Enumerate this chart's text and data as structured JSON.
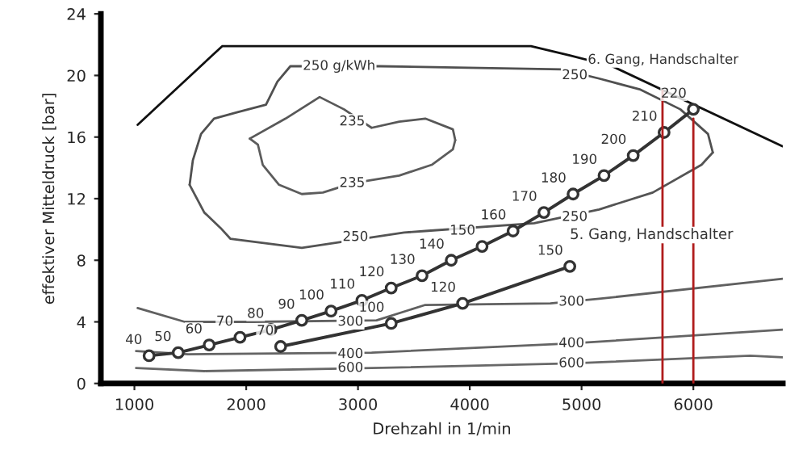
{
  "chart_data": {
    "type": "line",
    "xlabel": "Drehzahl in 1/min",
    "ylabel": "effektiver Mitteldruck [bar]",
    "xlim": [
      700,
      6800
    ],
    "xticks": [
      1000,
      2000,
      3000,
      4000,
      5000,
      6000
    ],
    "ylim": [
      0,
      24
    ],
    "yticks": [
      0,
      4,
      8,
      12,
      16,
      20,
      24
    ],
    "grid": false,
    "legend": false,
    "series": [
      {
        "color": "#111111",
        "marker": "none",
        "x": [
          1029,
          1785,
          4547,
          4895,
          5273,
          6799
        ],
        "values": [
          16.8,
          21.9,
          21.9,
          21.3,
          20.6,
          15.4
        ]
      },
      {
        "color": "#505050",
        "marker": "none",
        "x": [
          1494,
          1523,
          1596,
          1712,
          1916,
          2177,
          2279,
          2395,
          3195,
          4823,
          5157,
          5520,
          5884,
          6131,
          6174
        ],
        "values": [
          12.9,
          14.5,
          16.2,
          17.2,
          17.6,
          18.1,
          19.6,
          20.6,
          20.6,
          20.4,
          19.8,
          19.1,
          17.8,
          16.2,
          15.0
        ]
      },
      {
        "color": "#545454",
        "marker": "none",
        "x": [
          1494,
          1625,
          1770,
          1858,
          2497,
          3413,
          3602,
          4576,
          5157,
          5637,
          6073,
          6174
        ],
        "values": [
          12.9,
          11.1,
          10.1,
          9.4,
          8.8,
          9.8,
          9.9,
          10.4,
          11.3,
          12.4,
          14.2,
          15.0
        ]
      },
      {
        "color": "#585858",
        "marker": "none",
        "x": [
          2032,
          2352,
          2657,
          2875,
          3122,
          3369,
          3602,
          3849,
          3870
        ],
        "values": [
          15.9,
          17.2,
          18.6,
          17.8,
          16.6,
          17.0,
          17.2,
          16.5,
          15.8
        ]
      },
      {
        "color": "#5c5c5c",
        "marker": "none",
        "x": [
          2032,
          2105,
          2148,
          2294,
          2497,
          2686,
          2948,
          3369,
          3660,
          3849,
          3870
        ],
        "values": [
          15.9,
          15.5,
          14.2,
          12.9,
          12.3,
          12.4,
          13.0,
          13.5,
          14.2,
          15.2,
          15.8
        ]
      },
      {
        "color": "#606060",
        "marker": "none",
        "x": [
          1029,
          1451,
          2061,
          3166,
          3602,
          4721,
          5157,
          6799
        ],
        "values": [
          4.9,
          4.0,
          4.0,
          4.1,
          5.1,
          5.2,
          5.5,
          6.8
        ]
      },
      {
        "color": "#646464",
        "marker": "none",
        "x": [
          1015,
          1480,
          3122,
          4910,
          6799
        ],
        "values": [
          2.1,
          1.9,
          2.0,
          2.6,
          3.5
        ]
      },
      {
        "color": "#686868",
        "marker": "none",
        "x": [
          1015,
          1625,
          3122,
          4910,
          6509,
          6799
        ],
        "values": [
          1.0,
          0.8,
          1.0,
          1.3,
          1.8,
          1.7
        ]
      },
      {
        "color": "#333333",
        "marker": "circle",
        "x": [
          1131,
          1392,
          1669,
          1945,
          2221,
          2497,
          2759,
          3035,
          3297,
          3573,
          3834,
          4110,
          4387,
          4663,
          4924,
          5201,
          5462,
          5738,
          6000
        ],
        "values": [
          1.8,
          2.0,
          2.5,
          3.0,
          3.5,
          4.1,
          4.7,
          5.4,
          6.2,
          7.0,
          8.0,
          8.9,
          9.9,
          11.1,
          12.3,
          13.5,
          14.8,
          16.3,
          17.8
        ]
      },
      {
        "name": "5. Gang, Handschalter",
        "color": "#333333",
        "marker": "circle",
        "x": [
          2308,
          3297,
          3936,
          4895
        ],
        "values": [
          2.4,
          3.9,
          5.2,
          7.6
        ]
      },
      {
        "color": "#b01c1c",
        "marker": "none",
        "x": [
          5724,
          5724
        ],
        "values": [
          0,
          19.0
        ]
      },
      {
        "color": "#b01c1c",
        "marker": "none",
        "x": [
          6000,
          6000
        ],
        "values": [
          0,
          17.2
        ]
      }
    ],
    "annotations": [
      {
        "text": "250 g/kWh",
        "x": 2831,
        "y": 20.6
      },
      {
        "text": "6. Gang, Handschalter",
        "x": 5055,
        "y": 21.0
      },
      {
        "text": "250",
        "x": 4939,
        "y": 20.0
      },
      {
        "text": "250",
        "x": 4939,
        "y": 10.8
      },
      {
        "text": "250",
        "x": 2977,
        "y": 9.5
      },
      {
        "text": "235",
        "x": 2948,
        "y": 17.0
      },
      {
        "text": "235",
        "x": 2948,
        "y": 13.0
      },
      {
        "text": "300",
        "x": 2933,
        "y": 4.0
      },
      {
        "text": "300",
        "x": 4910,
        "y": 5.3
      },
      {
        "text": "400",
        "x": 2933,
        "y": 1.9
      },
      {
        "text": "400",
        "x": 4910,
        "y": 2.6
      },
      {
        "text": "600",
        "x": 2933,
        "y": 1.0
      },
      {
        "text": "600",
        "x": 4910,
        "y": 1.3
      },
      {
        "text": "40",
        "x": 1131,
        "y": 1.8
      },
      {
        "text": "50",
        "x": 1392,
        "y": 2.0
      },
      {
        "text": "60",
        "x": 1669,
        "y": 2.5
      },
      {
        "text": "70",
        "x": 1945,
        "y": 3.0
      },
      {
        "text": "80",
        "x": 2221,
        "y": 3.5
      },
      {
        "text": "90",
        "x": 2497,
        "y": 4.1
      },
      {
        "text": "100",
        "x": 2759,
        "y": 4.7
      },
      {
        "text": "110",
        "x": 3035,
        "y": 5.4
      },
      {
        "text": "120",
        "x": 3297,
        "y": 6.2
      },
      {
        "text": "130",
        "x": 3573,
        "y": 7.0
      },
      {
        "text": "140",
        "x": 3834,
        "y": 8.0
      },
      {
        "text": "150",
        "x": 4110,
        "y": 8.9
      },
      {
        "text": "160",
        "x": 4387,
        "y": 9.9
      },
      {
        "text": "170",
        "x": 4663,
        "y": 11.1
      },
      {
        "text": "180",
        "x": 4924,
        "y": 12.3
      },
      {
        "text": "190",
        "x": 5201,
        "y": 13.5
      },
      {
        "text": "200",
        "x": 5462,
        "y": 14.8
      },
      {
        "text": "210",
        "x": 5738,
        "y": 16.3
      },
      {
        "text": "220",
        "x": 6000,
        "y": 17.8
      },
      {
        "text": "70",
        "x": 2308,
        "y": 2.4
      },
      {
        "text": "100",
        "x": 3297,
        "y": 3.9
      },
      {
        "text": "120",
        "x": 3936,
        "y": 5.2
      },
      {
        "text": "150",
        "x": 4895,
        "y": 7.6
      }
    ]
  }
}
